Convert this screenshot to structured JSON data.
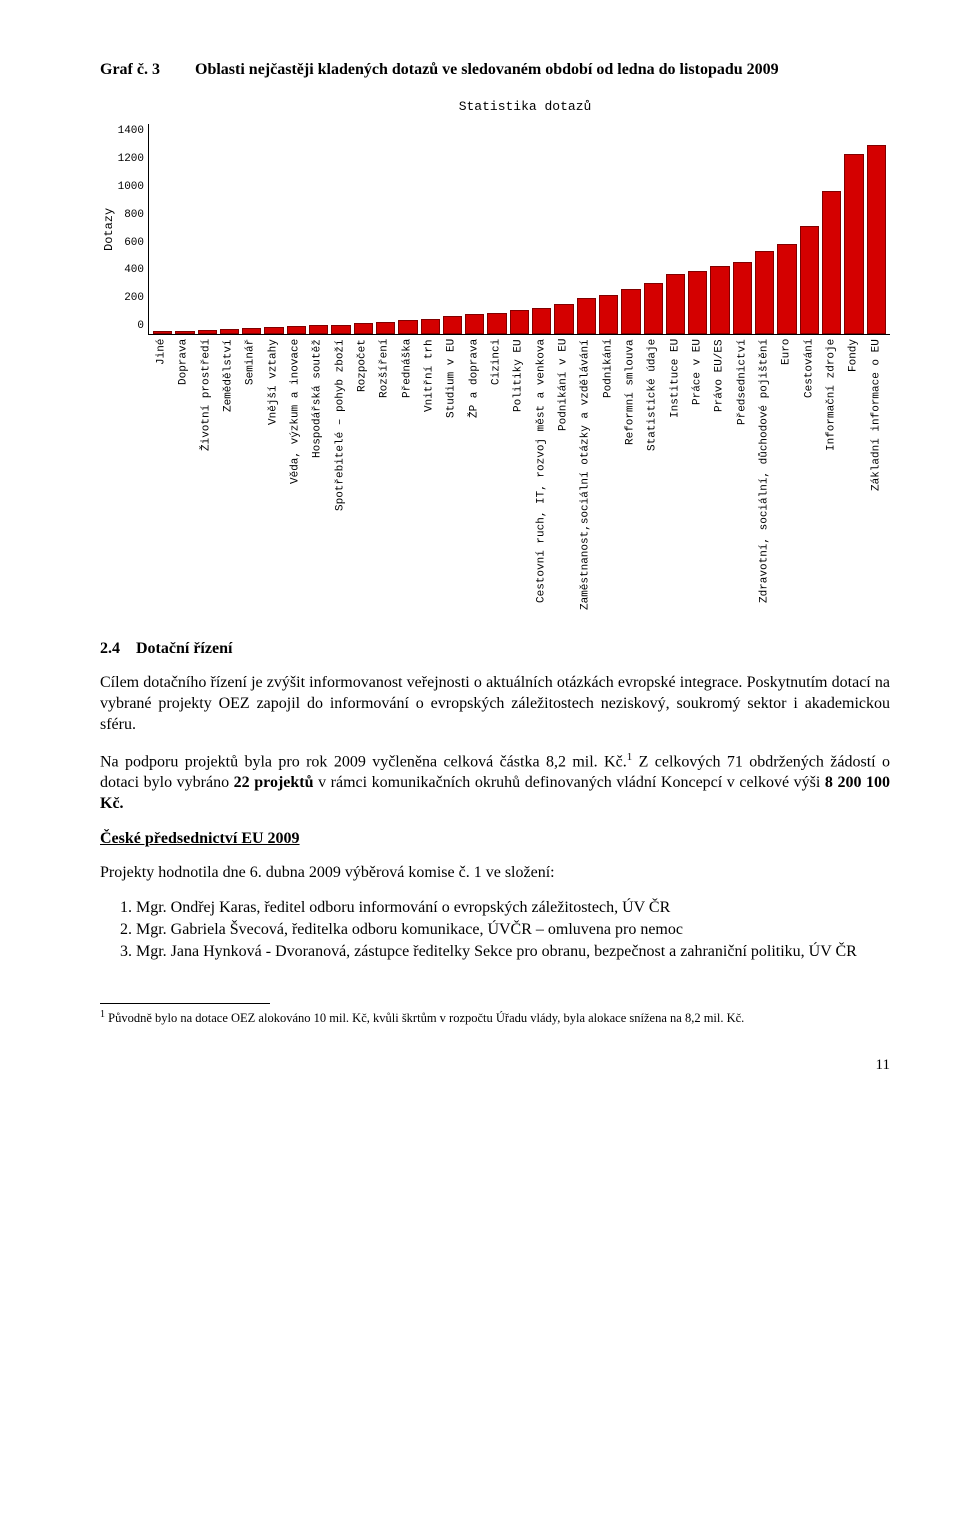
{
  "graf": {
    "label": "Graf č. 3",
    "title": "Oblasti nejčastěji kladených dotazů ve sledovaném období od ledna do listopadu 2009"
  },
  "chart": {
    "type": "bar",
    "title": "Statistika dotazů",
    "y_axis_label": "Dotazy",
    "y_ticks": [
      "1400",
      "1200",
      "1000",
      "800",
      "600",
      "400",
      "200",
      "0"
    ],
    "ylim_max": 1400,
    "bar_color": "#d40000",
    "bar_border": "#800000",
    "background_color": "#ffffff",
    "axis_color": "#000000",
    "font": "Courier New",
    "title_fontsize": 13,
    "tick_fontsize": 11,
    "categories": [
      "Jiné",
      "Doprava",
      "Životní prostředí",
      "Zemědělství",
      "Seminář",
      "Vnější vztahy",
      "Věda, výzkum a inovace",
      "Hospodářská soutěž",
      "Spotřebitelé – pohyb zboží",
      "Rozpočet",
      "Rozšíření",
      "Přednáška",
      "Vnitřní trh",
      "Studium v EU",
      "ŽP a doprava",
      "Cizinci",
      "Politiky EU",
      "Cestovní ruch, IT, rozvoj měst a venkova",
      "Podnikání v EU",
      "Zaměstnanost,sociální otázky a vzdělávání",
      "Podnikání",
      "Reformní smlouva",
      "Statistické údaje",
      "Instituce EU",
      "Práce v EU",
      "Právo EU/ES",
      "Předsednictví",
      "Zdravotní, sociální, důchodové pojištění",
      "Euro",
      "Cestování",
      "Informační zdroje",
      "Fondy",
      "Základní informace o EU"
    ],
    "values": [
      15,
      20,
      25,
      30,
      35,
      45,
      50,
      55,
      60,
      70,
      80,
      90,
      100,
      120,
      130,
      140,
      155,
      170,
      200,
      240,
      260,
      300,
      340,
      400,
      420,
      450,
      480,
      550,
      600,
      720,
      950,
      1200,
      1260
    ]
  },
  "section": {
    "number": "2.4",
    "title": "Dotační řízení"
  },
  "para1": "Cílem dotačního řízení je zvýšit informovanost veřejnosti o aktuálních otázkách evropské integrace. Poskytnutím dotací na vybrané projekty OEZ zapojil do informování o evropských záležitostech neziskový, soukromý sektor i akademickou sféru.",
  "para2_a": "Na podporu projektů byla pro rok 2009 vyčleněna celková částka 8,2 mil. Kč.",
  "para2_sup": "1",
  "para2_b": " Z celkových 71 obdržených žádostí o dotaci bylo vybráno ",
  "para2_bold1": "22 projektů",
  "para2_c": " v rámci komunikačních okruhů definovaných vládní Koncepcí v celkové výši ",
  "para2_bold2": "8 200 100  Kč.",
  "subheading": "České předsednictví EU 2009",
  "para3": "Projekty hodnotila dne 6. dubna 2009 výběrová komise č. 1 ve složení:",
  "members": [
    "Mgr. Ondřej Karas, ředitel odboru informování o evropských záležitostech, ÚV ČR",
    "Mgr. Gabriela Švecová, ředitelka odboru komunikace, ÚVČR – omluvena pro nemoc",
    "Mgr. Jana Hynková - Dvoranová, zástupce ředitelky Sekce pro obranu, bezpečnost a zahraniční politiku, ÚV ČR"
  ],
  "footnote_sup": "1",
  "footnote": " Původně bylo na dotace OEZ alokováno 10 mil. Kč, kvůli škrtům v rozpočtu Úřadu vlády, byla alokace snížena na 8,2 mil. Kč.",
  "page_number": "11"
}
